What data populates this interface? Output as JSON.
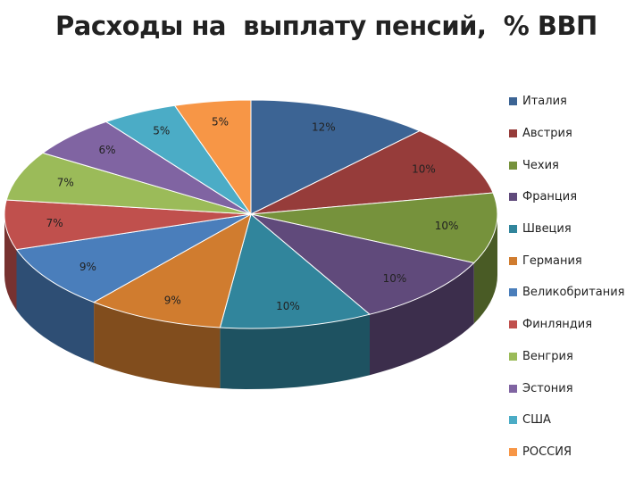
{
  "chart_data": {
    "type": "pie",
    "title": "Расходы на  выплату пенсий,  % ВВП",
    "style": "3d",
    "legend_position": "right",
    "slices": [
      {
        "name": "Италия",
        "value": 12,
        "label": "12%",
        "color": "#3c6494"
      },
      {
        "name": "Австрия",
        "value": 10,
        "label": "10%",
        "color": "#963c3a"
      },
      {
        "name": "Чехия",
        "value": 10,
        "label": "10%",
        "color": "#76923c"
      },
      {
        "name": "Франция",
        "value": 10,
        "label": "10%",
        "color": "#604a7b"
      },
      {
        "name": "Швеция",
        "value": 10,
        "label": "10%",
        "color": "#31859c"
      },
      {
        "name": "Германия",
        "value": 9,
        "label": "9%",
        "color": "#d07c2f"
      },
      {
        "name": "Великобритания",
        "value": 9,
        "label": "9%",
        "color": "#4a7ebb"
      },
      {
        "name": "Финляндия",
        "value": 7,
        "label": "7%",
        "color": "#c0504d"
      },
      {
        "name": "Венгрия",
        "value": 7,
        "label": "7%",
        "color": "#9bbb59"
      },
      {
        "name": "Эстония",
        "value": 6,
        "label": "6%",
        "color": "#8064a2"
      },
      {
        "name": "США",
        "value": 5,
        "label": "5%",
        "color": "#4bacc6"
      },
      {
        "name": "РОССИЯ",
        "value": 5,
        "label": "5%",
        "color": "#f79646"
      }
    ]
  }
}
